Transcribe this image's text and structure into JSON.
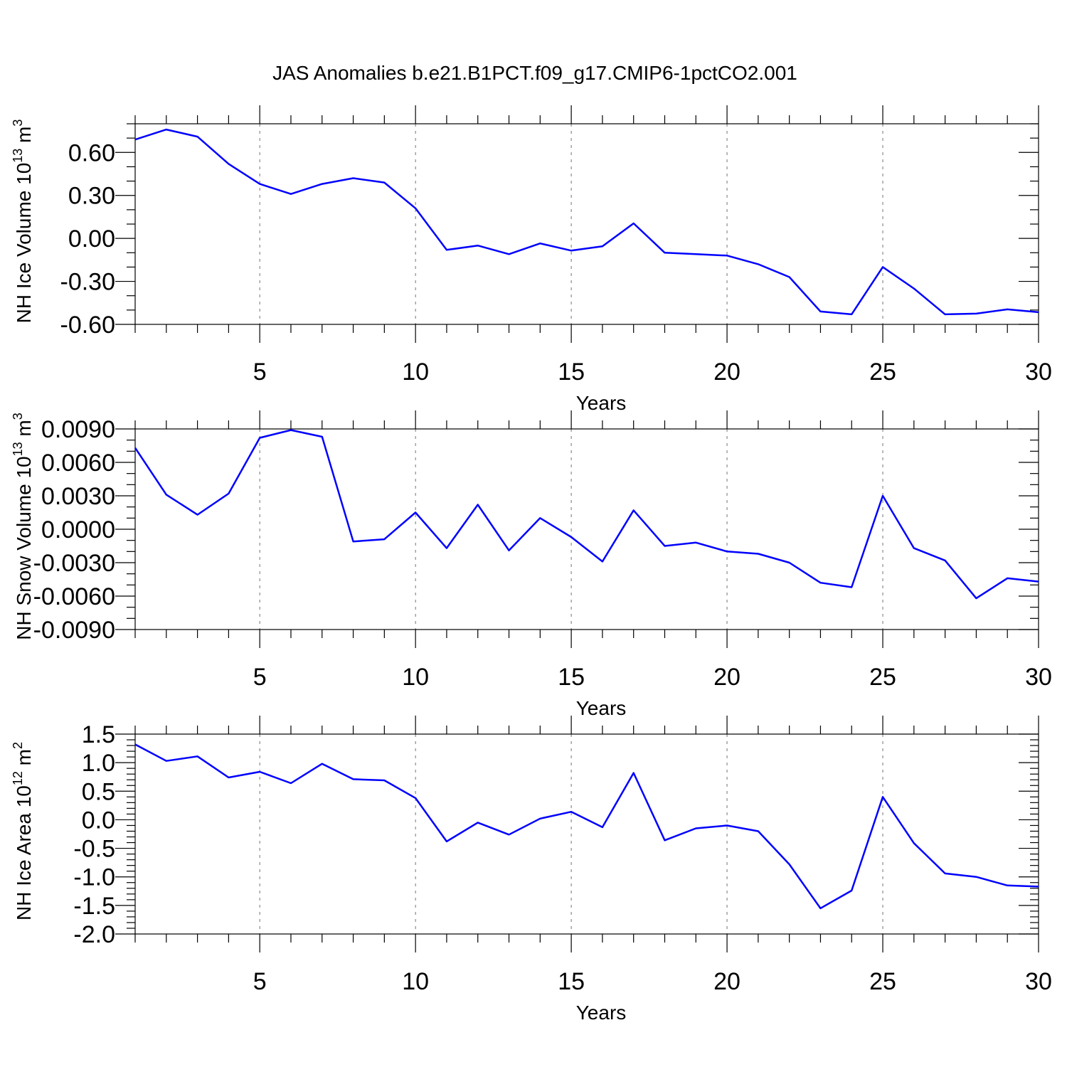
{
  "title": "JAS Anomalies b.e21.B1PCT.f09_g17.CMIP6-1pctCO2.001",
  "colors": {
    "series": "#0000ff",
    "axes": "#000000"
  },
  "chart_data": [
    {
      "type": "line",
      "ylabel": "NH Ice Volume 10",
      "ylabel_exp": "13",
      "ylabel_unit": " m",
      "ylabel_unit_exp": "3",
      "xlabel": "Years",
      "xlim": [
        1,
        30
      ],
      "ylim": [
        -0.6,
        0.8
      ],
      "xticks": [
        5,
        10,
        15,
        20,
        25,
        30
      ],
      "xtick_labels": [
        "5",
        "10",
        "15",
        "20",
        "25",
        "30"
      ],
      "yticks": [
        -0.6,
        -0.3,
        0.0,
        0.3,
        0.6
      ],
      "ytick_labels": [
        "-0.60",
        "-0.30",
        "0.00",
        "0.30",
        "0.60"
      ],
      "yminor_step": 0.1,
      "grid": "x-dashed",
      "x": [
        1,
        2,
        3,
        4,
        5,
        6,
        7,
        8,
        9,
        10,
        11,
        12,
        13,
        14,
        15,
        16,
        17,
        18,
        19,
        20,
        21,
        22,
        23,
        24,
        25,
        26,
        27,
        28,
        29,
        30
      ],
      "series": [
        {
          "values": [
            0.69,
            0.76,
            0.71,
            0.52,
            0.38,
            0.31,
            0.38,
            0.42,
            0.39,
            0.21,
            -0.08,
            -0.05,
            -0.11,
            -0.035,
            -0.085,
            -0.055,
            0.105,
            -0.1,
            -0.11,
            -0.12,
            -0.18,
            -0.27,
            -0.51,
            -0.53,
            -0.2,
            -0.35,
            -0.53,
            -0.525,
            -0.495,
            -0.515
          ]
        }
      ]
    },
    {
      "type": "line",
      "ylabel": "NH Snow Volume 10",
      "ylabel_exp": "13",
      "ylabel_unit": " m",
      "ylabel_unit_exp": "3",
      "xlabel": "Years",
      "xlim": [
        1,
        30
      ],
      "ylim": [
        -0.009,
        0.009
      ],
      "xticks": [
        5,
        10,
        15,
        20,
        25,
        30
      ],
      "xtick_labels": [
        "5",
        "10",
        "15",
        "20",
        "25",
        "30"
      ],
      "yticks": [
        -0.009,
        -0.006,
        -0.003,
        0.0,
        0.003,
        0.006,
        0.009
      ],
      "ytick_labels": [
        "-0.0090",
        "-0.0060",
        "-0.0030",
        "0.0000",
        "0.0030",
        "0.0060",
        "0.0090"
      ],
      "yminor_step": 0.001,
      "grid": "x-dashed",
      "x": [
        1,
        2,
        3,
        4,
        5,
        6,
        7,
        8,
        9,
        10,
        11,
        12,
        13,
        14,
        15,
        16,
        17,
        18,
        19,
        20,
        21,
        22,
        23,
        24,
        25,
        26,
        27,
        28,
        29,
        30
      ],
      "series": [
        {
          "values": [
            0.0073,
            0.0031,
            0.0013,
            0.0032,
            0.0082,
            0.0089,
            0.0083,
            -0.0011,
            -0.0009,
            0.0015,
            -0.0017,
            0.0022,
            -0.0019,
            0.001,
            -0.0007,
            -0.0029,
            0.0017,
            -0.0015,
            -0.0012,
            -0.002,
            -0.0022,
            -0.003,
            -0.0048,
            -0.0052,
            0.003,
            -0.0017,
            -0.0028,
            -0.0062,
            -0.0044,
            -0.0047
          ]
        }
      ]
    },
    {
      "type": "line",
      "ylabel": "NH Ice Area 10",
      "ylabel_exp": "12",
      "ylabel_unit": " m",
      "ylabel_unit_exp": "2",
      "xlabel": "Years",
      "xlim": [
        1,
        30
      ],
      "ylim": [
        -2.0,
        1.5
      ],
      "xticks": [
        5,
        10,
        15,
        20,
        25,
        30
      ],
      "xtick_labels": [
        "5",
        "10",
        "15",
        "20",
        "25",
        "30"
      ],
      "yticks": [
        -2.0,
        -1.5,
        -1.0,
        -0.5,
        0.0,
        0.5,
        1.0,
        1.5
      ],
      "ytick_labels": [
        "-2.0",
        "-1.5",
        "-1.0",
        "-0.5",
        "0.0",
        "0.5",
        "1.0",
        "1.5"
      ],
      "yminor_step": 0.1,
      "grid": "x-dashed",
      "x": [
        1,
        2,
        3,
        4,
        5,
        6,
        7,
        8,
        9,
        10,
        11,
        12,
        13,
        14,
        15,
        16,
        17,
        18,
        19,
        20,
        21,
        22,
        23,
        24,
        25,
        26,
        27,
        28,
        29,
        30
      ],
      "series": [
        {
          "values": [
            1.32,
            1.03,
            1.11,
            0.74,
            0.84,
            0.64,
            0.98,
            0.71,
            0.69,
            0.38,
            -0.38,
            -0.05,
            -0.26,
            0.02,
            0.14,
            -0.13,
            0.82,
            -0.36,
            -0.15,
            -0.1,
            -0.2,
            -0.78,
            -1.55,
            -1.24,
            0.4,
            -0.41,
            -0.94,
            -1.0,
            -1.15,
            -1.17
          ]
        }
      ]
    }
  ]
}
